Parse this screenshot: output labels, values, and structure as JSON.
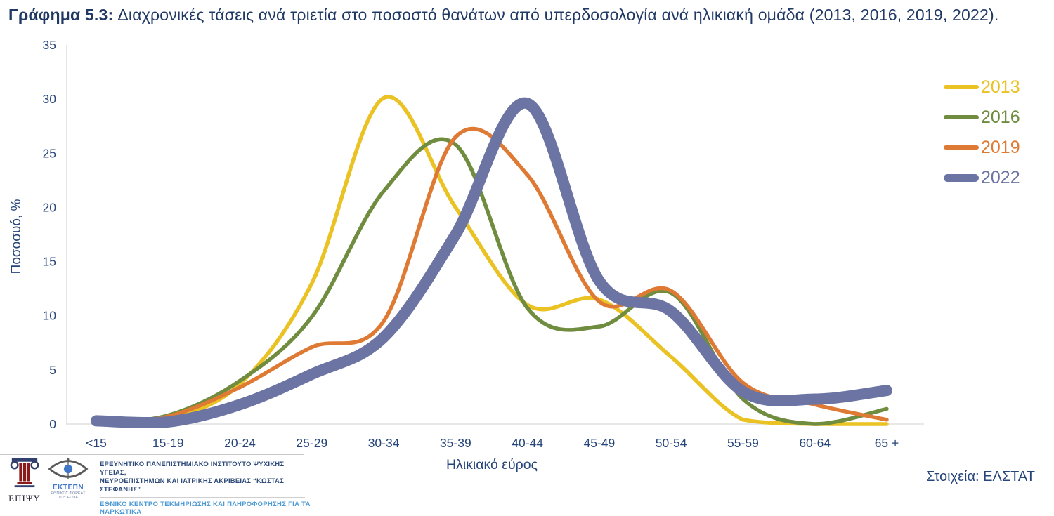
{
  "title": {
    "prefix": "Γράφημα 5.3:",
    "text": "Διαχρονικές τάσεις ανά τριετία στο ποσοστό θανάτων από υπερδοσολογία ανά ηλικιακή ομάδα (2013, 2016, 2019, 2022)."
  },
  "source_note": "Στοιχεία: ΕΛΣΤΑΤ",
  "footer": {
    "epipsy_label": "ΕΠΙΨΥ",
    "ektepn_label": "ΕΚΤΕΠΝ",
    "ektepn_sub1": "ΕΘΝΙΚΟΣ ΦΟΡΕΑΣ",
    "ektepn_sub2": "ΤΟΥ EUDA",
    "institute_line1": "ΕΡΕΥΝΗΤΙΚΟ ΠΑΝΕΠΙΣΤΗΜΙΑΚΟ ΙΝΣΤΙΤΟΥΤΟ ΨΥΧΙΚΗΣ ΥΓΕΙΑΣ,",
    "institute_line2": "ΝΕΥΡΟΕΠΙΣΤΗΜΩΝ ΚΑΙ ΙΑΤΡΙΚΗΣ ΑΚΡΙΒΕΙΑΣ “ΚΩΣΤΑΣ ΣΤΕΦΑΝΗΣ”",
    "ektepn_full": "ΕΘΝΙΚΟ ΚΕΝΤΡΟ ΤΕΚΜΗΡΙΩΣΗΣ ΚΑΙ ΠΛΗΡΟΦΟΡΗΣΗΣ ΓΙΑ ΤΑ ΝΑΡΚΩΤΙΚΑ"
  },
  "colors": {
    "title_text": "#1F3864",
    "axis_text": "#26457A",
    "axis_line": "#D9D9D9",
    "footer_light_blue": "#4E9AD5",
    "ektepn_blue": "#4177C9"
  },
  "chart_data": {
    "type": "line",
    "smoothing": "spline",
    "xlabel": "Ηλικιακό εύρος",
    "ylabel": "Ποσοσυό, %",
    "ylim": [
      0,
      35
    ],
    "yticks": [
      0,
      5,
      10,
      15,
      20,
      25,
      30,
      35
    ],
    "grid": false,
    "legend_position": "right",
    "categories": [
      "<15",
      "15-19",
      "20-24",
      "25-29",
      "30-34",
      "35-39",
      "40-44",
      "45-49",
      "50-54",
      "55-59",
      "60-64",
      "65 +"
    ],
    "series": [
      {
        "name": "2013",
        "color": "#EAC223",
        "width": 5.5,
        "values": [
          0,
          0.5,
          3.7,
          13.0,
          30.1,
          20.0,
          11.0,
          11.5,
          6.2,
          0.4,
          0,
          0
        ]
      },
      {
        "name": "2016",
        "color": "#6F8C3F",
        "width": 5.5,
        "values": [
          0.1,
          0.8,
          4.0,
          9.9,
          21.5,
          25.8,
          10.7,
          9.0,
          12.1,
          2.3,
          0,
          1.4
        ]
      },
      {
        "name": "2019",
        "color": "#DF7A35",
        "width": 5.5,
        "values": [
          0,
          0.7,
          3.4,
          7.1,
          9.5,
          26.5,
          23.0,
          11.3,
          12.3,
          3.8,
          1.8,
          0.4
        ]
      },
      {
        "name": "2022",
        "color": "#6B74A2",
        "width": 16,
        "values": [
          0.3,
          0.2,
          1.8,
          4.6,
          8.0,
          17.5,
          29.6,
          13.2,
          10.4,
          3.0,
          2.3,
          3.1
        ]
      }
    ]
  }
}
